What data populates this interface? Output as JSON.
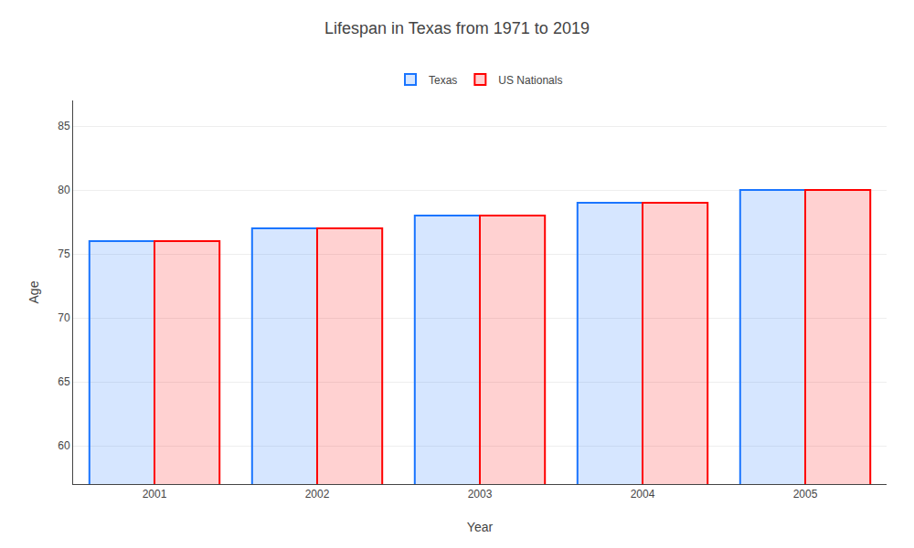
{
  "chart_data": {
    "type": "bar",
    "title": "Lifespan in Texas from 1971 to 2019",
    "x_label": "Year",
    "y_label": "Age",
    "categories": [
      2001,
      2002,
      2003,
      2004,
      2005
    ],
    "series": [
      {
        "name": "Texas",
        "color": "#1a75ff",
        "values": [
          76,
          77,
          78,
          79,
          80
        ]
      },
      {
        "name": "US Nationals",
        "color": "#ff0000",
        "values": [
          76,
          77,
          78,
          79,
          80
        ]
      }
    ],
    "ylim": [
      57,
      87
    ],
    "yticks": [
      60,
      65,
      70,
      75,
      80,
      85
    ],
    "grid": true,
    "legend": "top"
  }
}
